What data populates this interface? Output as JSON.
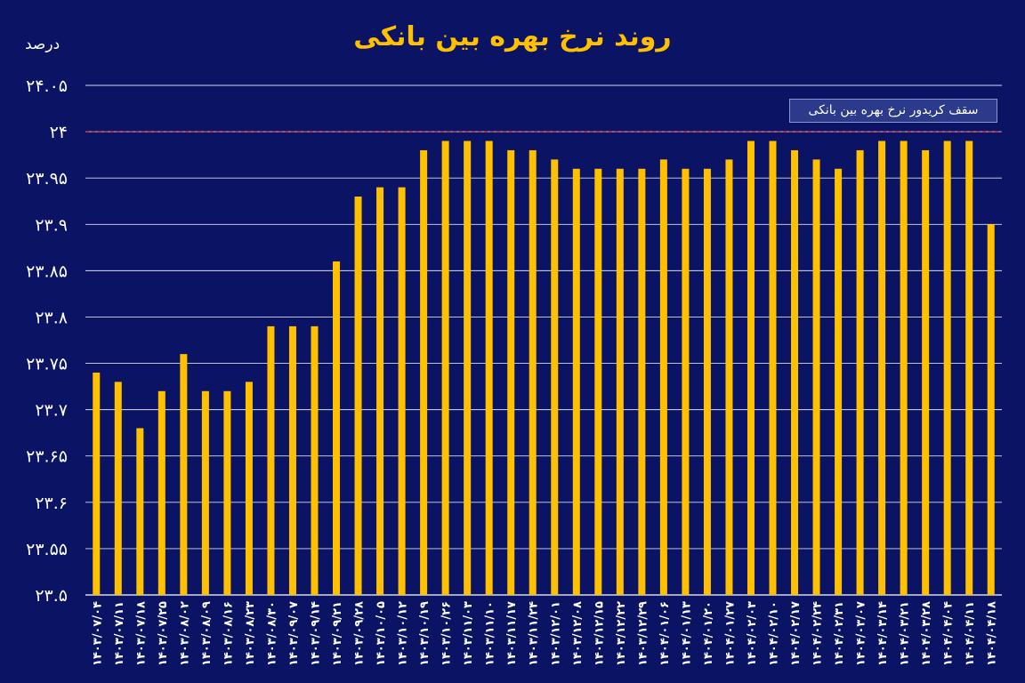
{
  "chart_data": {
    "type": "bar",
    "title": "روند نرخ بهره بین بانکی",
    "ylabel": "درصد",
    "xlabel": "",
    "ylim": [
      23.5,
      24.05
    ],
    "yticks": [
      "۲۳.۵",
      "۲۳.۵۵",
      "۲۳.۶",
      "۲۳.۶۵",
      "۲۳.۷",
      "۲۳.۷۵",
      "۲۳.۸",
      "۲۳.۸۵",
      "۲۳.۹",
      "۲۳.۹۵",
      "۲۴",
      "۲۴.۰۵"
    ],
    "ytick_values": [
      23.5,
      23.55,
      23.6,
      23.65,
      23.7,
      23.75,
      23.8,
      23.85,
      23.9,
      23.95,
      24,
      24.05
    ],
    "grid": true,
    "bar_color": "#ffc000",
    "reference_line": {
      "value": 24,
      "label": "سقف کریدور نرخ  بهره بین بانکی",
      "color": "#ff4040"
    },
    "categories": [
      "۱۴۰۳/۰۷/۰۴",
      "۱۴۰۳/۰۷/۱۱",
      "۱۴۰۳/۰۷/۱۸",
      "۱۴۰۳/۰۷/۲۵",
      "۱۴۰۳/۰۸/۰۲",
      "۱۴۰۳/۰۸/۰۹",
      "۱۴۰۳/۰۸/۱۶",
      "۱۴۰۳/۰۸/۲۳",
      "۱۴۰۳/۰۸/۳۰",
      "۱۴۰۳/۰۹/۰۷",
      "۱۴۰۳/۰۹/۱۴",
      "۱۴۰۳/۰۹/۲۱",
      "۱۴۰۳/۰۹/۲۸",
      "۱۴۰۳/۱۰/۰۵",
      "۱۴۰۳/۱۰/۱۲",
      "۱۴۰۳/۱۰/۱۹",
      "۱۴۰۳/۱۰/۲۶",
      "۱۴۰۳/۱۱/۰۳",
      "۱۴۰۳/۱۱/۱۰",
      "۱۴۰۳/۱۱/۱۷",
      "۱۴۰۳/۱۱/۲۴",
      "۱۴۰۳/۱۲/۰۱",
      "۱۴۰۳/۱۲/۰۸",
      "۱۴۰۳/۱۲/۱۵",
      "۱۴۰۳/۱۲/۲۲",
      "۱۴۰۳/۱۲/۲۹",
      "۱۴۰۴/۰۱/۰۶",
      "۱۴۰۴/۰۱/۱۳",
      "۱۴۰۴/۰۱/۲۰",
      "۱۴۰۴/۰۱/۲۷",
      "۱۴۰۴/۰۲/۰۳",
      "۱۴۰۴/۰۲/۱۰",
      "۱۴۰۴/۰۲/۱۷",
      "۱۴۰۴/۰۲/۲۴",
      "۱۴۰۴/۰۲/۳۱",
      "۱۴۰۴/۰۳/۰۷",
      "۱۴۰۴/۰۳/۱۴",
      "۱۴۰۴/۰۳/۲۱",
      "۱۴۰۴/۰۳/۲۸",
      "۱۴۰۴/۰۴/۰۴",
      "۱۴۰۴/۰۴/۱۱",
      "۱۴۰۴/۰۴/۱۸"
    ],
    "values": [
      23.74,
      23.73,
      23.68,
      23.72,
      23.76,
      23.72,
      23.72,
      23.73,
      23.79,
      23.79,
      23.79,
      23.86,
      23.93,
      23.94,
      23.94,
      23.98,
      23.99,
      23.99,
      23.99,
      23.98,
      23.98,
      23.97,
      23.96,
      23.96,
      23.96,
      23.96,
      23.97,
      23.96,
      23.96,
      23.97,
      23.99,
      23.99,
      23.98,
      23.97,
      23.96,
      23.98,
      23.99,
      23.99,
      23.98,
      23.99,
      23.99,
      23.9
    ]
  }
}
